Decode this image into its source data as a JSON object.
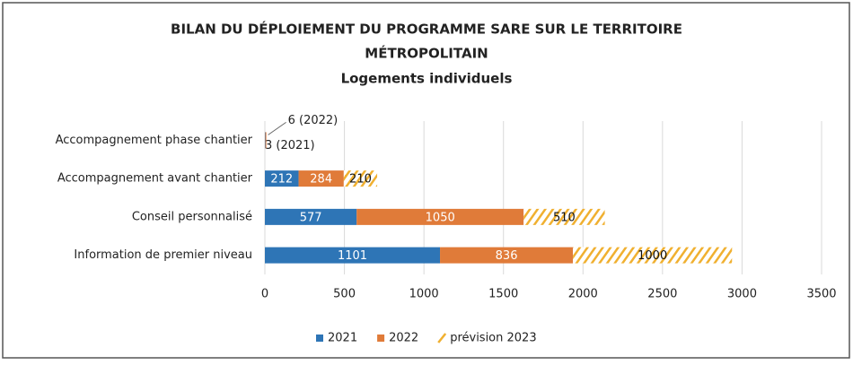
{
  "chart_data": {
    "type": "bar",
    "orientation": "horizontal",
    "stacked": true,
    "title": [
      "BILAN DU DÉPLOIEMENT DU PROGRAMME SARE SUR LE TERRITOIRE",
      "MÉTROPOLITAIN"
    ],
    "subtitle": "Logements individuels",
    "categories": [
      "Accompagnement phase chantier",
      "Accompagnement avant chantier",
      "Conseil personnalisé",
      "Information de premier niveau"
    ],
    "series": [
      {
        "name": "2021",
        "color": "#2e75b6",
        "values": [
          3,
          212,
          577,
          1101
        ],
        "value_labels": [
          "3 (2021)",
          "212",
          "577",
          "1101"
        ]
      },
      {
        "name": "2022",
        "color": "#e07b39",
        "values": [
          6,
          284,
          1050,
          836
        ],
        "value_labels": [
          "6 (2022)",
          "284",
          "1050",
          "836"
        ]
      },
      {
        "name": "prévision 2023",
        "color": "#f0b030",
        "pattern": "hatch",
        "values": [
          null,
          210,
          510,
          1000
        ]
      }
    ],
    "xlim": [
      0,
      3500
    ],
    "xticks": [
      0,
      500,
      1000,
      1500,
      2000,
      2500,
      3000,
      3500
    ],
    "grid": true,
    "legend": "bottom"
  }
}
